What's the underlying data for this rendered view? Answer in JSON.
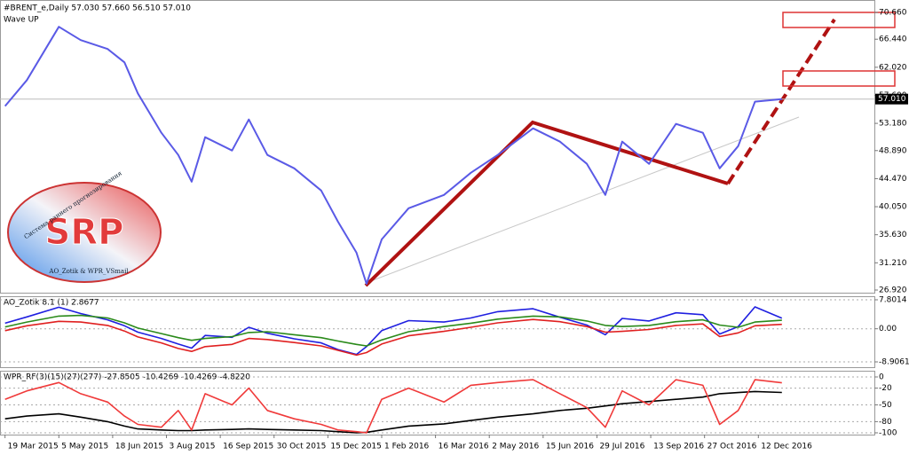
{
  "logo": {
    "title": "SRP",
    "subtitle": "Система раннего прогнозирования",
    "footer": "AO_Zotik & WPR_VSmail"
  },
  "chart_data": [
    {
      "type": "line",
      "title": "#BRENT_e,Daily  57.030 57.660 56.510 57.010",
      "subtitle": "Wave UP",
      "x": [
        0,
        13,
        32,
        45,
        61,
        71,
        79,
        93,
        103,
        111,
        119,
        135,
        145,
        156,
        172,
        188,
        198,
        209,
        215,
        224,
        240,
        261,
        277,
        293,
        314,
        330,
        346,
        357,
        367,
        383,
        399,
        415,
        425,
        436,
        446,
        462
      ],
      "series": [
        {
          "color": "#5a5ae6",
          "values": [
            55.9,
            60.0,
            68.4,
            66.3,
            64.9,
            62.8,
            57.9,
            51.7,
            48.2,
            44.0,
            51.0,
            48.9,
            53.8,
            48.2,
            46.1,
            42.6,
            37.7,
            32.8,
            27.9,
            34.9,
            39.8,
            41.9,
            45.4,
            48.2,
            52.4,
            50.3,
            46.8,
            41.9,
            50.3,
            46.8,
            53.1,
            51.7,
            46.1,
            49.6,
            56.6,
            57.01
          ]
        }
      ],
      "xlim": [
        -3,
        517
      ],
      "ylim": [
        26.5,
        72.06
      ],
      "yticks": [
        {
          "value": 70.66,
          "label": "70.660"
        },
        {
          "value": 66.44,
          "label": "66.440"
        },
        {
          "value": 62.02,
          "label": "62.020"
        },
        {
          "value": 57.6,
          "label": "57.600"
        },
        {
          "value": 53.18,
          "label": "53.180"
        },
        {
          "value": 48.89,
          "label": "48.890"
        },
        {
          "value": 44.47,
          "label": "44.470"
        },
        {
          "value": 40.05,
          "label": "40.050"
        },
        {
          "value": 35.63,
          "label": "35.630"
        },
        {
          "value": 31.21,
          "label": "31.210"
        },
        {
          "value": 26.92,
          "label": "26.920"
        }
      ],
      "markers": [
        {
          "value": 57.01,
          "label": "57.010"
        }
      ],
      "grid": false
    },
    {
      "type": "line",
      "title": "AO_Zotik 8.1 (1) 2.8677",
      "x": [
        0,
        13,
        32,
        45,
        61,
        71,
        79,
        93,
        103,
        111,
        119,
        135,
        145,
        156,
        172,
        188,
        198,
        209,
        215,
        224,
        240,
        261,
        277,
        293,
        314,
        330,
        346,
        357,
        367,
        383,
        399,
        415,
        425,
        436,
        446,
        462
      ],
      "series": [
        {
          "color": "#1f1fe0",
          "values": [
            1.5,
            3.2,
            5.8,
            4.1,
            2.4,
            0.8,
            -0.9,
            -2.6,
            -4.1,
            -5.2,
            -1.8,
            -2.3,
            0.4,
            -1.2,
            -2.7,
            -3.8,
            -5.6,
            -6.9,
            -4.8,
            -0.5,
            2.2,
            1.8,
            2.9,
            4.6,
            5.4,
            3.1,
            1.0,
            -1.6,
            2.8,
            2.1,
            4.3,
            3.8,
            -1.4,
            0.6,
            5.9,
            2.87
          ]
        },
        {
          "color": "#2a8a1a",
          "values": [
            0.5,
            1.8,
            3.4,
            3.6,
            2.9,
            1.6,
            0.2,
            -1.3,
            -2.4,
            -3.1,
            -2.6,
            -2.1,
            -1.0,
            -0.8,
            -1.6,
            -2.4,
            -3.3,
            -4.2,
            -4.6,
            -3.0,
            -0.8,
            0.6,
            1.5,
            2.6,
            3.4,
            3.2,
            2.1,
            0.9,
            0.6,
            0.9,
            1.9,
            2.4,
            1.0,
            0.4,
            1.8,
            2.3
          ]
        },
        {
          "color": "#e02020",
          "values": [
            -0.5,
            0.8,
            2.0,
            1.8,
            0.9,
            -0.6,
            -2.2,
            -3.8,
            -5.3,
            -6.1,
            -4.8,
            -4.2,
            -2.6,
            -2.9,
            -3.7,
            -4.6,
            -5.8,
            -7.1,
            -6.4,
            -4.1,
            -1.9,
            -0.7,
            0.4,
            1.6,
            2.5,
            1.9,
            0.6,
            -0.9,
            -0.7,
            -0.2,
            0.9,
            1.3,
            -2.1,
            -1.1,
            0.8,
            1.2
          ]
        }
      ],
      "xlim": [
        -3,
        517
      ],
      "ylim": [
        -10.34,
        8.52
      ],
      "yticks": [
        7.8014,
        {
          "value": 0,
          "label": "0.00"
        },
        -8.9061
      ],
      "grid": true
    },
    {
      "type": "line",
      "title": "WPR_RF(3)(15)(27)(277) -27.8505 -10.4269 -10.4269 -4.8220",
      "x": [
        0,
        13,
        32,
        45,
        61,
        71,
        79,
        93,
        103,
        111,
        119,
        135,
        145,
        156,
        172,
        188,
        198,
        209,
        215,
        224,
        240,
        261,
        277,
        293,
        314,
        330,
        346,
        357,
        367,
        383,
        399,
        415,
        425,
        436,
        446,
        462
      ],
      "series": [
        {
          "color": "#000000",
          "values": [
            -75,
            -70,
            -66,
            -72,
            -80,
            -88,
            -93,
            -95,
            -96,
            -96,
            -95,
            -94,
            -93,
            -94,
            -95,
            -96,
            -98,
            -100,
            -99,
            -95,
            -88,
            -84,
            -78,
            -72,
            -66,
            -60,
            -56,
            -52,
            -48,
            -44,
            -40,
            -36,
            -30,
            -28,
            -26,
            -27.85
          ]
        },
        {
          "color": "#f03a3a",
          "values": [
            -40,
            -25,
            -10,
            -30,
            -45,
            -70,
            -85,
            -90,
            -60,
            -95,
            -30,
            -50,
            -20,
            -60,
            -75,
            -85,
            -95,
            -98,
            -100,
            -40,
            -20,
            -45,
            -15,
            -10,
            -5,
            -30,
            -55,
            -90,
            -25,
            -50,
            -5,
            -15,
            -85,
            -60,
            -5,
            -10.43
          ]
        }
      ],
      "xlim": [
        -3,
        517
      ],
      "ylim": [
        -103.2,
        9.5
      ],
      "yticks": [
        0,
        -20,
        -50,
        -80,
        -100
      ],
      "xticks": [
        {
          "value": 0,
          "label": "19 Mar 2015"
        },
        {
          "value": 32,
          "label": "5 May 2015"
        },
        {
          "value": 64,
          "label": "18 Jun 2015"
        },
        {
          "value": 96,
          "label": "3 Aug 2015"
        },
        {
          "value": 128,
          "label": "16 Sep 2015"
        },
        {
          "value": 160,
          "label": "30 Oct 2015"
        },
        {
          "value": 192,
          "label": "15 Dec 2015"
        },
        {
          "value": 224,
          "label": "1 Feb 2016"
        },
        {
          "value": 256,
          "label": "16 Mar 2016"
        },
        {
          "value": 288,
          "label": "2 May 2016"
        },
        {
          "value": 320,
          "label": "15 Jun 2016"
        },
        {
          "value": 352,
          "label": "29 Jul 2016"
        },
        {
          "value": 384,
          "label": "13 Sep 2016"
        },
        {
          "value": 416,
          "label": "27 Oct 2016"
        },
        {
          "value": 448,
          "label": "12 Dec 2016"
        }
      ],
      "grid": true
    }
  ]
}
